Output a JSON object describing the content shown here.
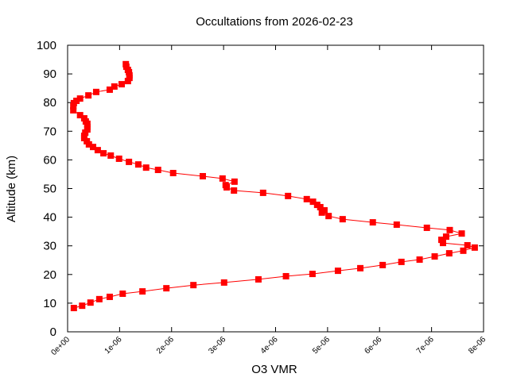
{
  "chart_data": {
    "type": "line",
    "title": "Occultations from 2026-02-23",
    "xlabel": "O3 VMR",
    "ylabel": "Altitude (km)",
    "xlim": [
      0,
      8e-06
    ],
    "ylim": [
      0,
      100
    ],
    "grid": false,
    "legend": "none",
    "series_color": "#ff0000",
    "marker": "square",
    "x_ticks": [
      "0e+00",
      "1e-06",
      "2e-06",
      "3e-06",
      "4e-06",
      "5e-06",
      "6e-06",
      "7e-06",
      "8e-06"
    ],
    "x_tick_values": [
      0,
      1e-06,
      2e-06,
      3e-06,
      4e-06,
      5e-06,
      6e-06,
      7e-06,
      8e-06
    ],
    "y_ticks": [
      "0",
      "10",
      "20",
      "30",
      "40",
      "50",
      "60",
      "70",
      "80",
      "90",
      "100"
    ],
    "y_tick_values": [
      0,
      10,
      20,
      30,
      40,
      50,
      60,
      70,
      80,
      90,
      100
    ],
    "series": [
      {
        "x": [
          1.2e-07,
          2.8e-07,
          4.4e-07,
          6.1e-07,
          8.1e-07,
          1.06e-06,
          1.44e-06,
          1.9e-06,
          2.42e-06,
          3.01e-06,
          3.67e-06,
          4.2e-06,
          4.71e-06,
          5.2e-06,
          5.63e-06,
          6.06e-06,
          6.42e-06,
          6.77e-06,
          7.06e-06,
          7.34e-06,
          7.61e-06,
          7.83e-06,
          7.69e-06,
          7.22e-06,
          7.19e-06,
          7.28e-06,
          7.58e-06,
          7.35e-06,
          6.91e-06,
          6.33e-06,
          5.87e-06,
          5.29e-06,
          5.02e-06,
          4.89e-06,
          4.94e-06,
          4.86e-06,
          4.8e-06,
          4.72e-06,
          4.6e-06,
          4.24e-06,
          3.76e-06,
          3.2e-06,
          3.06e-06,
          3.04e-06,
          3.21e-06,
          2.98e-06,
          2.6e-06,
          2.03e-06,
          1.74e-06,
          1.51e-06,
          1.36e-06,
          1.18e-06,
          9.9e-07,
          8.3e-07,
          6.9e-07,
          5.8e-07,
          4.9e-07,
          4.1e-07,
          3.7e-07,
          3.2e-07,
          3.2e-07,
          3.4e-07,
          3.8e-07,
          3.8e-07,
          3.8e-07,
          3.5e-07,
          3.2e-07,
          2.4e-07,
          1.1e-07,
          1.1e-07,
          1.2e-07,
          1.7e-07,
          2.4e-07,
          4e-07,
          5.5e-07,
          8.1e-07,
          9e-07,
          1.04e-06,
          1.16e-06,
          1.19e-06,
          1.19e-06,
          1.18e-06,
          1.16e-06,
          1.13e-06,
          1.12e-06
        ],
        "y": [
          8.3,
          9.1,
          10.2,
          11.4,
          12.2,
          13.3,
          14.1,
          15.2,
          16.3,
          17.2,
          18.3,
          19.4,
          20.2,
          21.3,
          22.2,
          23.3,
          24.4,
          25.2,
          26.3,
          27.4,
          28.3,
          29.4,
          30.2,
          31.0,
          32.1,
          33.2,
          34.3,
          35.5,
          36.3,
          37.4,
          38.2,
          39.3,
          40.4,
          41.6,
          42.4,
          43.5,
          44.3,
          45.4,
          46.3,
          47.4,
          48.5,
          49.3,
          50.4,
          51.2,
          52.4,
          53.5,
          54.3,
          55.4,
          56.5,
          57.3,
          58.4,
          59.3,
          60.4,
          61.5,
          62.3,
          63.4,
          64.5,
          65.4,
          66.5,
          67.6,
          68.4,
          69.5,
          70.6,
          71.5,
          72.6,
          73.4,
          74.5,
          75.6,
          77.3,
          78.7,
          79.8,
          80.6,
          81.4,
          82.5,
          83.7,
          84.5,
          85.6,
          86.4,
          87.5,
          88.6,
          89.5,
          90.6,
          91.4,
          92.5,
          93.4
        ]
      }
    ]
  }
}
